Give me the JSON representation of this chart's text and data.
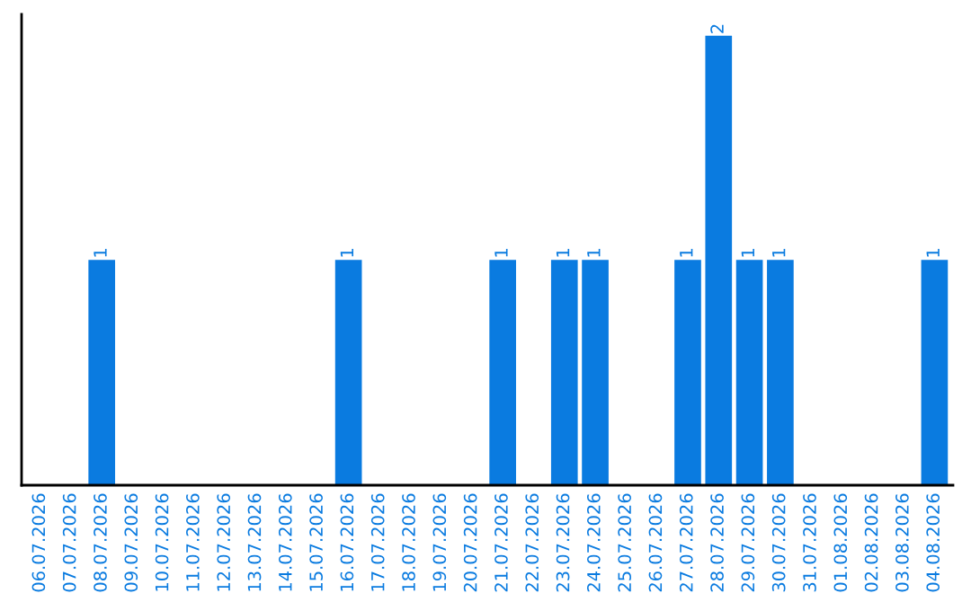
{
  "chart_data": {
    "type": "bar",
    "categories": [
      "06.07.2026",
      "07.07.2026",
      "08.07.2026",
      "09.07.2026",
      "10.07.2026",
      "11.07.2026",
      "12.07.2026",
      "13.07.2026",
      "14.07.2026",
      "15.07.2026",
      "16.07.2026",
      "17.07.2026",
      "18.07.2026",
      "19.07.2026",
      "20.07.2026",
      "21.07.2026",
      "22.07.2026",
      "23.07.2026",
      "24.07.2026",
      "25.07.2026",
      "26.07.2026",
      "27.07.2026",
      "28.07.2026",
      "29.07.2026",
      "30.07.2026",
      "31.07.2026",
      "01.08.2026",
      "02.08.2026",
      "03.08.2026",
      "04.08.2026"
    ],
    "values": [
      0,
      0,
      1,
      0,
      0,
      0,
      0,
      0,
      0,
      0,
      1,
      0,
      0,
      0,
      0,
      1,
      0,
      1,
      1,
      0,
      0,
      1,
      2,
      1,
      1,
      0,
      0,
      0,
      0,
      1
    ],
    "value_labels": [
      null,
      null,
      "1",
      null,
      null,
      null,
      null,
      null,
      null,
      null,
      "1",
      null,
      null,
      null,
      null,
      "1",
      null,
      "1",
      "1",
      null,
      null,
      "1",
      "2",
      "1",
      "1",
      null,
      null,
      null,
      null,
      "1"
    ],
    "color": "#0a7be0",
    "ylim": [
      0,
      2.1
    ],
    "tick_labels": "x",
    "grid": false,
    "legend": false
  }
}
